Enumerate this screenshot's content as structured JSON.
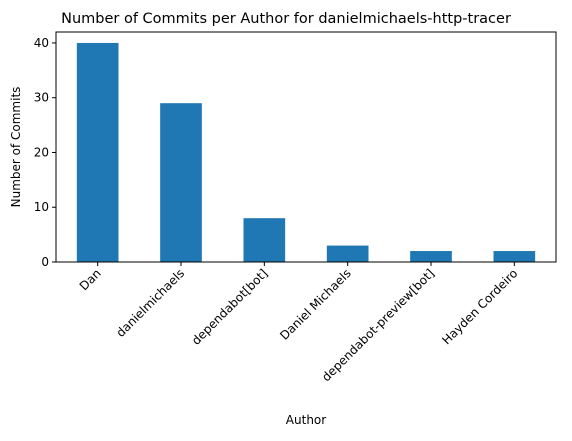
{
  "chart_data": {
    "type": "bar",
    "title": "Number of Commits per Author for danielmichaels-http-tracer",
    "xlabel": "Author",
    "ylabel": "Number of Commits",
    "categories": [
      "Dan",
      "danielmichaels",
      "dependabot[bot]",
      "Daniel Michaels",
      "dependabot-preview[bot]",
      "Hayden Cordeiro"
    ],
    "values": [
      40,
      29,
      8,
      3,
      2,
      2
    ],
    "ylim": [
      0,
      42
    ],
    "yticks": [
      0,
      10,
      20,
      30,
      40
    ],
    "grid": false,
    "legend": "none",
    "colors": {
      "bar": "#1f77b4",
      "axis": "#000000",
      "background": "#ffffff"
    }
  }
}
